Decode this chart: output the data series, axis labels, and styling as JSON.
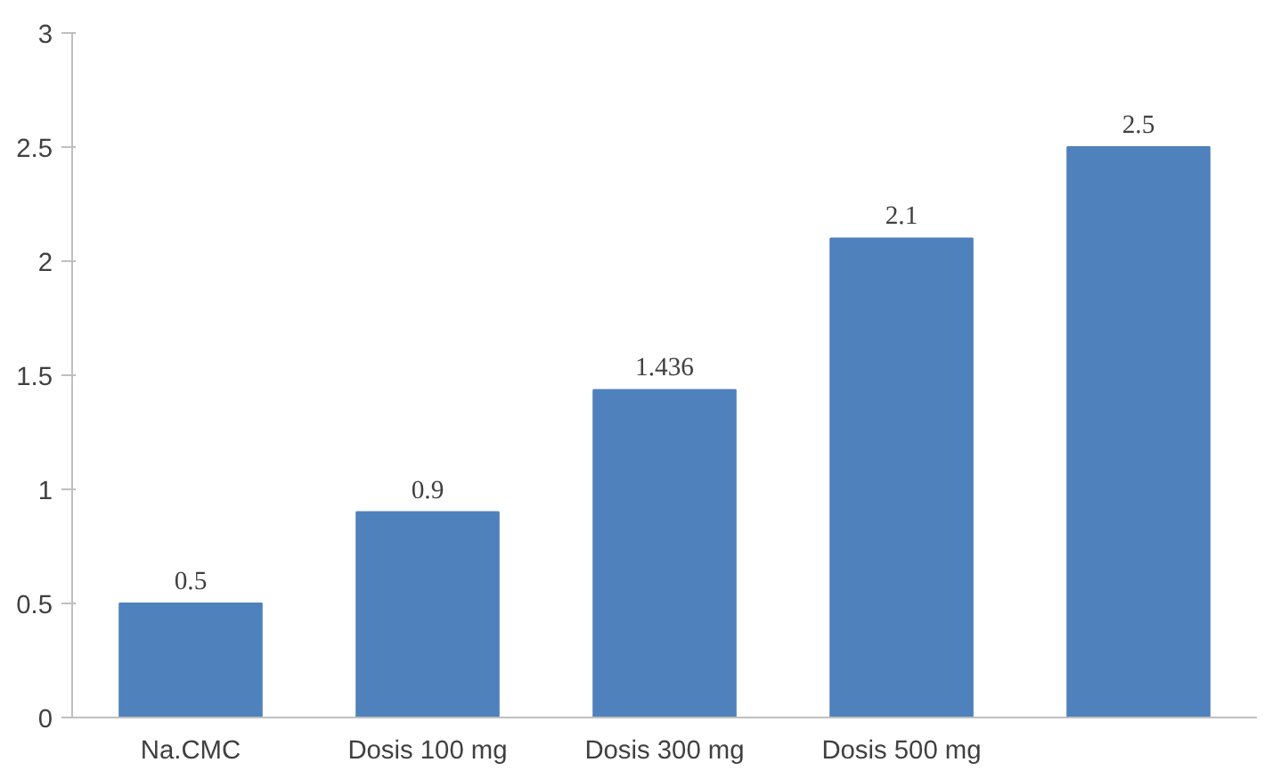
{
  "chart_data": {
    "type": "bar",
    "categories": [
      "Na.CMC",
      "Dosis 100 mg",
      "Dosis 300 mg",
      "Dosis 500 mg",
      null
    ],
    "values": [
      0.5,
      0.9,
      1.436,
      2.1,
      2.5
    ],
    "color": "#4f81bd",
    "ylim": [
      0,
      3
    ],
    "yticks": [
      0,
      0.5,
      1,
      1.5,
      2,
      2.5,
      3
    ],
    "grid": false,
    "data_labels": true
  }
}
